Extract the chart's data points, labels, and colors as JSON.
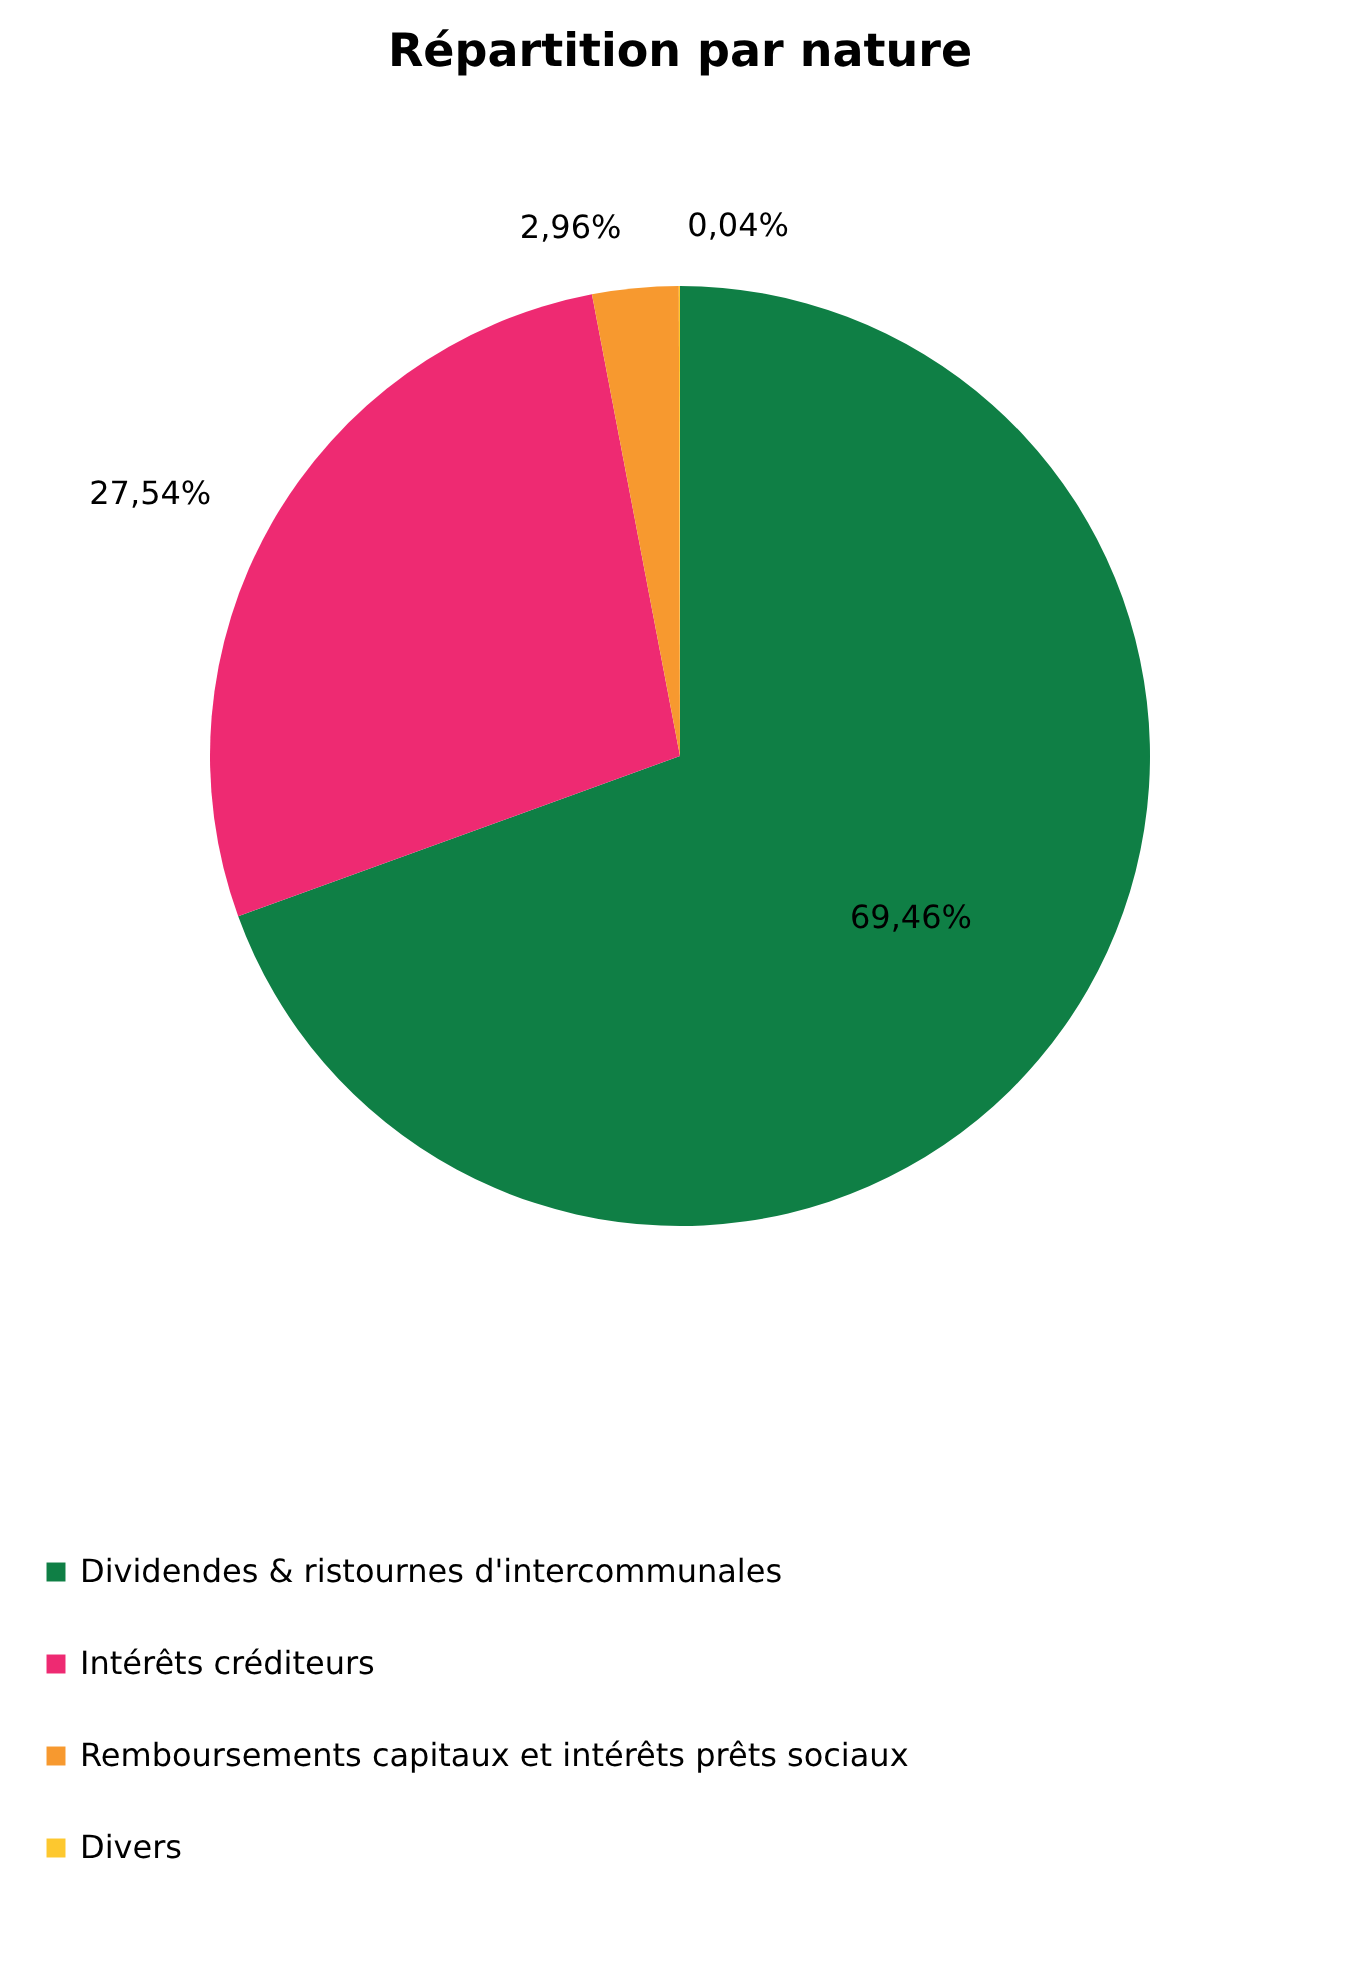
{
  "chart_data": {
    "type": "pie",
    "title": "Répartition par nature",
    "categories": [
      "Dividendes & ristournes d'intercommunales",
      "Intérêts créditeurs",
      "Remboursements capitaux et intérêts prêts sociaux",
      "Divers"
    ],
    "values": [
      69.46,
      27.54,
      2.96,
      0.04
    ],
    "value_labels": [
      "69,46%",
      "27,54%",
      "2,96%",
      "0,04%"
    ],
    "colors": [
      "#0f7f45",
      "#ee2a72",
      "#f7992f",
      "#fdc82f"
    ],
    "legend": "bottom"
  }
}
